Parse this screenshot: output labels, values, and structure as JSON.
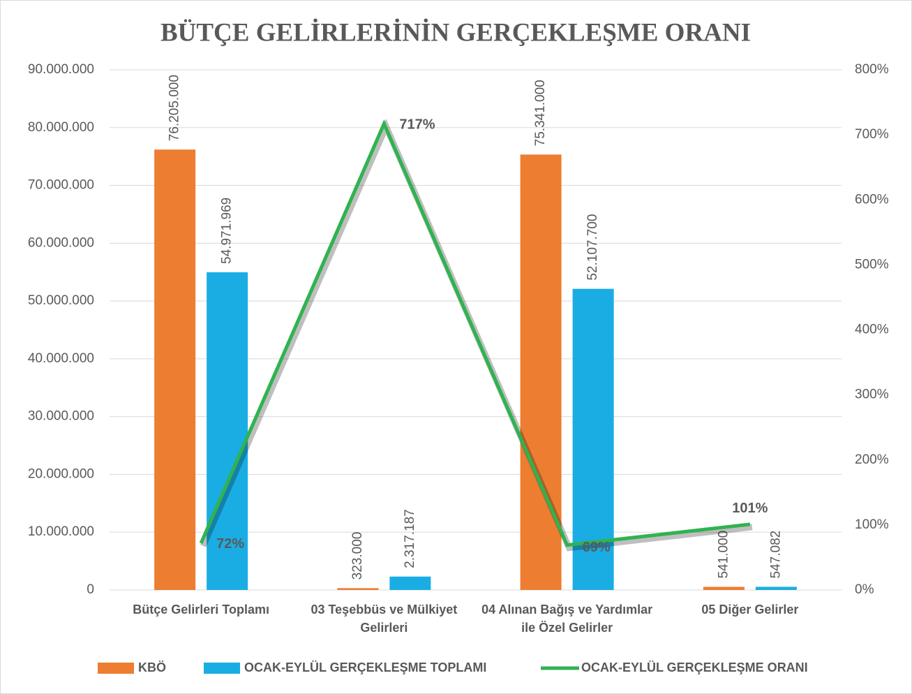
{
  "chart_data": {
    "type": "bar-line",
    "title": "BÜTÇE GELİRLERİNİN GERÇEKLEŞME ORANI",
    "categories": [
      "Bütçe Gelirleri Toplamı",
      "03 Teşebbüs ve Mülkiyet Gelirleri",
      "04 Alınan Bağış ve Yardımlar ile Özel Gelirler",
      "05 Diğer Gelirler"
    ],
    "series": [
      {
        "name": "KBÖ",
        "color": "#ed7d31",
        "type": "bar",
        "values": [
          76205000,
          323000,
          75341000,
          541000
        ],
        "value_labels": [
          "76.205.000",
          "323.000",
          "75.341.000",
          "541.000"
        ]
      },
      {
        "name": "OCAK-EYLÜL GERÇEKLEŞME TOPLAMI",
        "color": "#1aade3",
        "type": "bar",
        "values": [
          54971969,
          2317187,
          52107700,
          547082
        ],
        "value_labels": [
          "54.971.969",
          "2.317.187",
          "52.107.700",
          "547.082"
        ]
      },
      {
        "name": "OCAK-EYLÜL GERÇEKLEŞME ORANI",
        "color": "#2fb350",
        "type": "line",
        "axis": "y2",
        "values": [
          72,
          717,
          69,
          101
        ],
        "value_labels": [
          "72%",
          "717%",
          "69%",
          "101%"
        ]
      }
    ],
    "ylim": [
      0,
      90000000
    ],
    "yticks": [
      0,
      {
        "value": 10000000,
        "label": "10.000.000"
      },
      {
        "value": 20000000,
        "label": "20.000.000"
      },
      {
        "value": 30000000,
        "label": "30.000.000"
      },
      {
        "value": 40000000,
        "label": "40.000.000"
      },
      {
        "value": 50000000,
        "label": "50.000.000"
      },
      {
        "value": 60000000,
        "label": "60.000.000"
      },
      {
        "value": 70000000,
        "label": "70.000.000"
      },
      {
        "value": 80000000,
        "label": "80.000.000"
      },
      {
        "value": 90000000,
        "label": "90.000.000"
      }
    ],
    "y2lim": [
      0,
      800
    ],
    "y2ticks": [
      {
        "value": 0,
        "label": "0%"
      },
      {
        "value": 100,
        "label": "100%"
      },
      {
        "value": 200,
        "label": "200%"
      },
      {
        "value": 300,
        "label": "300%"
      },
      {
        "value": 400,
        "label": "400%"
      },
      {
        "value": 500,
        "label": "500%"
      },
      {
        "value": 600,
        "label": "600%"
      },
      {
        "value": 700,
        "label": "700%"
      },
      {
        "value": 800,
        "label": "800%"
      }
    ],
    "grid": true,
    "legend": "bottom"
  }
}
